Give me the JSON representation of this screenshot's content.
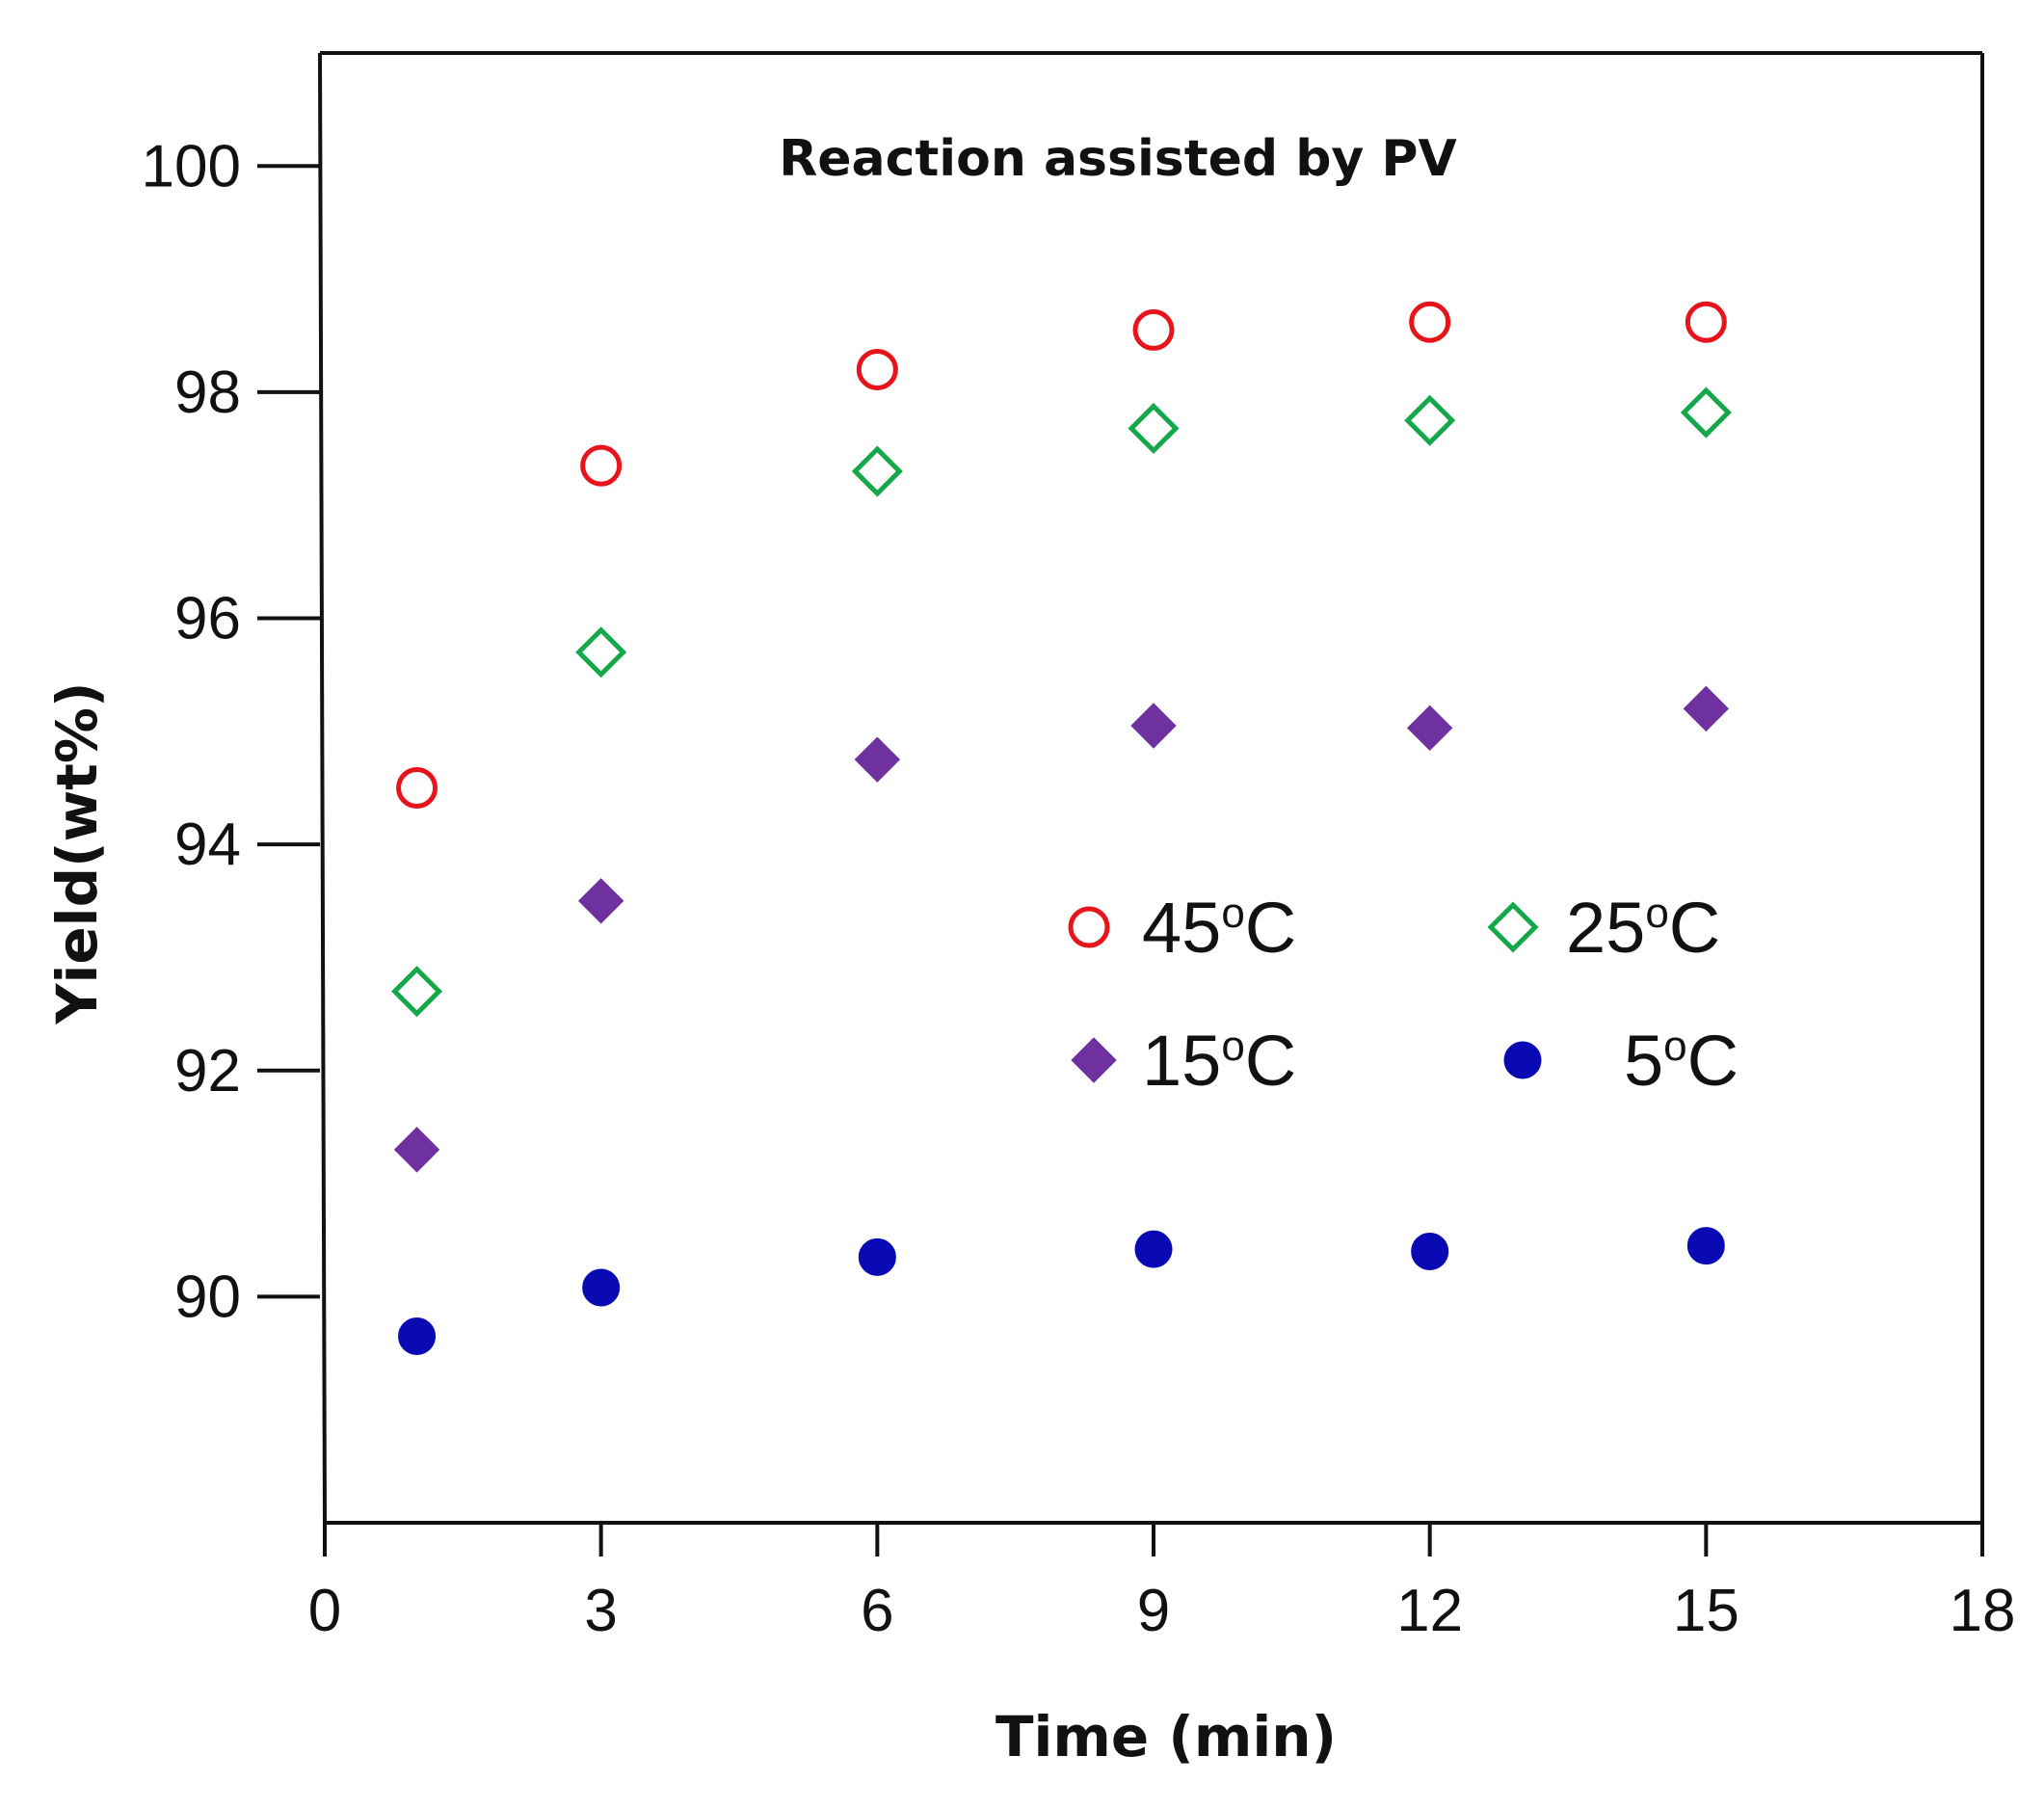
{
  "chart_data": {
    "type": "scatter",
    "title": "Reaction assisted by PV",
    "xlabel": "Time (min)",
    "ylabel": "Yield(wt%)",
    "xlim": [
      0,
      18
    ],
    "ylim": [
      88,
      101
    ],
    "x_ticks": [
      0,
      3,
      6,
      9,
      12,
      15,
      18
    ],
    "y_ticks": [
      90,
      92,
      94,
      96,
      98,
      100
    ],
    "grid": false,
    "legend_position": "center-right",
    "legend_columns": 2,
    "series": [
      {
        "name": "45",
        "unit_sup": "o",
        "unit": "C",
        "marker": "circle-open",
        "color": "#e8141b",
        "points": [
          {
            "x": 1,
            "y": 94.5
          },
          {
            "x": 3,
            "y": 97.35
          },
          {
            "x": 6,
            "y": 98.2
          },
          {
            "x": 9,
            "y": 98.55
          },
          {
            "x": 12,
            "y": 98.62
          },
          {
            "x": 15,
            "y": 98.62
          }
        ]
      },
      {
        "name": "25",
        "unit_sup": "o",
        "unit": "C",
        "marker": "diamond-open",
        "color": "#14a84b",
        "points": [
          {
            "x": 1,
            "y": 92.7
          },
          {
            "x": 3,
            "y": 95.7
          },
          {
            "x": 6,
            "y": 97.3
          },
          {
            "x": 9,
            "y": 97.68
          },
          {
            "x": 12,
            "y": 97.75
          },
          {
            "x": 15,
            "y": 97.82
          }
        ]
      },
      {
        "name": "15",
        "unit_sup": "o",
        "unit": "C",
        "marker": "diamond-filled",
        "color": "#7031a0",
        "points": [
          {
            "x": 1,
            "y": 91.3
          },
          {
            "x": 3,
            "y": 93.5
          },
          {
            "x": 6,
            "y": 94.75
          },
          {
            "x": 9,
            "y": 95.05
          },
          {
            "x": 12,
            "y": 95.03
          },
          {
            "x": 15,
            "y": 95.2
          }
        ]
      },
      {
        "name": "5",
        "unit_sup": "o",
        "unit": "C",
        "marker": "circle-filled",
        "color": "#0a0ab4",
        "points": [
          {
            "x": 1,
            "y": 89.65
          },
          {
            "x": 3,
            "y": 90.08
          },
          {
            "x": 6,
            "y": 90.35
          },
          {
            "x": 9,
            "y": 90.42
          },
          {
            "x": 12,
            "y": 90.4
          },
          {
            "x": 15,
            "y": 90.45
          }
        ]
      }
    ]
  }
}
